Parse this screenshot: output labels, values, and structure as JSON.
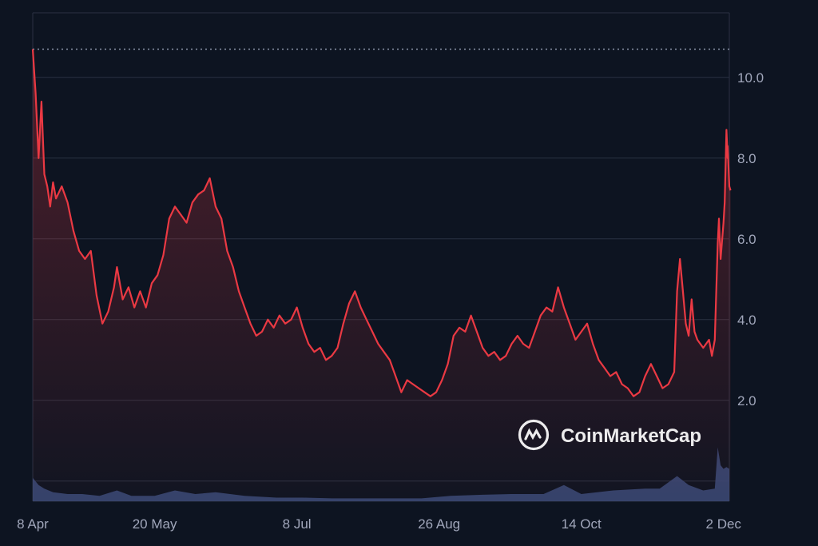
{
  "watermark": {
    "text": "CoinMarketCap",
    "icon": "coinmarketcap-logo-icon"
  },
  "colors": {
    "background": "#0d1421",
    "grid": "#2a3142",
    "price_line": "#ea3943",
    "volume": "#3a4a78",
    "tick_label": "#a1a7bb"
  },
  "chart_data": {
    "type": "area",
    "title": "",
    "xlabel": "",
    "ylabel": "",
    "grid": true,
    "y_axis_side": "right",
    "ylim": [
      -0.5,
      11.6
    ],
    "y_ticks": [
      {
        "value": 2.0,
        "label": "2.0"
      },
      {
        "value": 4.0,
        "label": "4.0"
      },
      {
        "value": 6.0,
        "label": "6.0"
      },
      {
        "value": 8.0,
        "label": "8.0"
      },
      {
        "value": 10.0,
        "label": "10.0"
      }
    ],
    "x_range": [
      "2024-04-08",
      "2024-12-04"
    ],
    "x_ticks": [
      {
        "date": "2024-04-08",
        "label": "8 Apr"
      },
      {
        "date": "2024-05-20",
        "label": "20 May"
      },
      {
        "date": "2024-07-08",
        "label": "8 Jul"
      },
      {
        "date": "2024-08-26",
        "label": "26 Aug"
      },
      {
        "date": "2024-10-14",
        "label": "14 Oct"
      },
      {
        "date": "2024-12-02",
        "label": "2 Dec"
      }
    ],
    "reference_line": {
      "value": 10.7,
      "style": "dotted"
    },
    "series": [
      {
        "kind": "price",
        "points": [
          [
            "2024-04-08",
            10.7
          ],
          [
            "2024-04-09",
            9.6
          ],
          [
            "2024-04-10",
            8.0
          ],
          [
            "2024-04-11",
            9.4
          ],
          [
            "2024-04-12",
            7.6
          ],
          [
            "2024-04-13",
            7.3
          ],
          [
            "2024-04-14",
            6.8
          ],
          [
            "2024-04-15",
            7.4
          ],
          [
            "2024-04-16",
            7.0
          ],
          [
            "2024-04-18",
            7.3
          ],
          [
            "2024-04-20",
            6.9
          ],
          [
            "2024-04-22",
            6.2
          ],
          [
            "2024-04-24",
            5.7
          ],
          [
            "2024-04-26",
            5.5
          ],
          [
            "2024-04-28",
            5.7
          ],
          [
            "2024-04-30",
            4.6
          ],
          [
            "2024-05-02",
            3.9
          ],
          [
            "2024-05-04",
            4.2
          ],
          [
            "2024-05-06",
            4.8
          ],
          [
            "2024-05-07",
            5.3
          ],
          [
            "2024-05-09",
            4.5
          ],
          [
            "2024-05-11",
            4.8
          ],
          [
            "2024-05-13",
            4.3
          ],
          [
            "2024-05-15",
            4.7
          ],
          [
            "2024-05-17",
            4.3
          ],
          [
            "2024-05-19",
            4.9
          ],
          [
            "2024-05-21",
            5.1
          ],
          [
            "2024-05-23",
            5.6
          ],
          [
            "2024-05-25",
            6.5
          ],
          [
            "2024-05-27",
            6.8
          ],
          [
            "2024-05-29",
            6.6
          ],
          [
            "2024-05-31",
            6.4
          ],
          [
            "2024-06-02",
            6.9
          ],
          [
            "2024-06-04",
            7.1
          ],
          [
            "2024-06-06",
            7.2
          ],
          [
            "2024-06-08",
            7.5
          ],
          [
            "2024-06-10",
            6.8
          ],
          [
            "2024-06-12",
            6.5
          ],
          [
            "2024-06-14",
            5.7
          ],
          [
            "2024-06-16",
            5.3
          ],
          [
            "2024-06-18",
            4.7
          ],
          [
            "2024-06-20",
            4.3
          ],
          [
            "2024-06-22",
            3.9
          ],
          [
            "2024-06-24",
            3.6
          ],
          [
            "2024-06-26",
            3.7
          ],
          [
            "2024-06-28",
            4.0
          ],
          [
            "2024-06-30",
            3.8
          ],
          [
            "2024-07-02",
            4.1
          ],
          [
            "2024-07-04",
            3.9
          ],
          [
            "2024-07-06",
            4.0
          ],
          [
            "2024-07-08",
            4.3
          ],
          [
            "2024-07-10",
            3.8
          ],
          [
            "2024-07-12",
            3.4
          ],
          [
            "2024-07-14",
            3.2
          ],
          [
            "2024-07-16",
            3.3
          ],
          [
            "2024-07-18",
            3.0
          ],
          [
            "2024-07-20",
            3.1
          ],
          [
            "2024-07-22",
            3.3
          ],
          [
            "2024-07-24",
            3.9
          ],
          [
            "2024-07-26",
            4.4
          ],
          [
            "2024-07-28",
            4.7
          ],
          [
            "2024-07-30",
            4.3
          ],
          [
            "2024-08-01",
            4.0
          ],
          [
            "2024-08-03",
            3.7
          ],
          [
            "2024-08-05",
            3.4
          ],
          [
            "2024-08-07",
            3.2
          ],
          [
            "2024-08-09",
            3.0
          ],
          [
            "2024-08-11",
            2.6
          ],
          [
            "2024-08-13",
            2.2
          ],
          [
            "2024-08-15",
            2.5
          ],
          [
            "2024-08-17",
            2.4
          ],
          [
            "2024-08-19",
            2.3
          ],
          [
            "2024-08-21",
            2.2
          ],
          [
            "2024-08-23",
            2.1
          ],
          [
            "2024-08-25",
            2.2
          ],
          [
            "2024-08-27",
            2.5
          ],
          [
            "2024-08-29",
            2.9
          ],
          [
            "2024-08-31",
            3.6
          ],
          [
            "2024-09-02",
            3.8
          ],
          [
            "2024-09-04",
            3.7
          ],
          [
            "2024-09-06",
            4.1
          ],
          [
            "2024-09-08",
            3.7
          ],
          [
            "2024-09-10",
            3.3
          ],
          [
            "2024-09-12",
            3.1
          ],
          [
            "2024-09-14",
            3.2
          ],
          [
            "2024-09-16",
            3.0
          ],
          [
            "2024-09-18",
            3.1
          ],
          [
            "2024-09-20",
            3.4
          ],
          [
            "2024-09-22",
            3.6
          ],
          [
            "2024-09-24",
            3.4
          ],
          [
            "2024-09-26",
            3.3
          ],
          [
            "2024-09-28",
            3.7
          ],
          [
            "2024-09-30",
            4.1
          ],
          [
            "2024-10-02",
            4.3
          ],
          [
            "2024-10-04",
            4.2
          ],
          [
            "2024-10-06",
            4.8
          ],
          [
            "2024-10-08",
            4.3
          ],
          [
            "2024-10-10",
            3.9
          ],
          [
            "2024-10-12",
            3.5
          ],
          [
            "2024-10-14",
            3.7
          ],
          [
            "2024-10-16",
            3.9
          ],
          [
            "2024-10-18",
            3.4
          ],
          [
            "2024-10-20",
            3.0
          ],
          [
            "2024-10-22",
            2.8
          ],
          [
            "2024-10-24",
            2.6
          ],
          [
            "2024-10-26",
            2.7
          ],
          [
            "2024-10-28",
            2.4
          ],
          [
            "2024-10-30",
            2.3
          ],
          [
            "2024-11-01",
            2.1
          ],
          [
            "2024-11-03",
            2.2
          ],
          [
            "2024-11-05",
            2.6
          ],
          [
            "2024-11-07",
            2.9
          ],
          [
            "2024-11-09",
            2.6
          ],
          [
            "2024-11-11",
            2.3
          ],
          [
            "2024-11-13",
            2.4
          ],
          [
            "2024-11-15",
            2.7
          ],
          [
            "2024-11-16",
            4.7
          ],
          [
            "2024-11-17",
            5.5
          ],
          [
            "2024-11-18",
            4.7
          ],
          [
            "2024-11-19",
            3.9
          ],
          [
            "2024-11-20",
            3.6
          ],
          [
            "2024-11-21",
            4.5
          ],
          [
            "2024-11-22",
            3.7
          ],
          [
            "2024-11-23",
            3.5
          ],
          [
            "2024-11-25",
            3.3
          ],
          [
            "2024-11-27",
            3.5
          ],
          [
            "2024-11-28",
            3.1
          ],
          [
            "2024-11-29",
            3.5
          ],
          [
            "2024-11-30",
            5.9
          ],
          [
            "2024-11-30",
            6.5
          ],
          [
            "2024-12-01",
            5.5
          ],
          [
            "2024-12-02",
            6.4
          ],
          [
            "2024-12-02",
            6.9
          ],
          [
            "2024-12-03",
            8.7
          ],
          [
            "2024-12-03",
            8.0
          ],
          [
            "2024-12-03",
            8.3
          ],
          [
            "2024-12-04",
            7.3
          ],
          [
            "2024-12-04",
            7.2
          ]
        ]
      },
      {
        "kind": "volume",
        "points": [
          [
            "2024-04-08",
            0.65
          ],
          [
            "2024-04-10",
            0.45
          ],
          [
            "2024-04-12",
            0.35
          ],
          [
            "2024-04-15",
            0.25
          ],
          [
            "2024-04-20",
            0.2
          ],
          [
            "2024-04-25",
            0.2
          ],
          [
            "2024-05-01",
            0.15
          ],
          [
            "2024-05-07",
            0.3
          ],
          [
            "2024-05-12",
            0.15
          ],
          [
            "2024-05-20",
            0.15
          ],
          [
            "2024-05-27",
            0.3
          ],
          [
            "2024-06-03",
            0.2
          ],
          [
            "2024-06-10",
            0.25
          ],
          [
            "2024-06-20",
            0.15
          ],
          [
            "2024-07-01",
            0.1
          ],
          [
            "2024-07-10",
            0.1
          ],
          [
            "2024-07-20",
            0.08
          ],
          [
            "2024-08-01",
            0.08
          ],
          [
            "2024-08-10",
            0.08
          ],
          [
            "2024-08-20",
            0.08
          ],
          [
            "2024-08-30",
            0.15
          ],
          [
            "2024-09-10",
            0.18
          ],
          [
            "2024-09-20",
            0.2
          ],
          [
            "2024-10-01",
            0.2
          ],
          [
            "2024-10-08",
            0.45
          ],
          [
            "2024-10-14",
            0.2
          ],
          [
            "2024-10-25",
            0.3
          ],
          [
            "2024-11-05",
            0.35
          ],
          [
            "2024-11-10",
            0.35
          ],
          [
            "2024-11-16",
            0.7
          ],
          [
            "2024-11-20",
            0.45
          ],
          [
            "2024-11-25",
            0.3
          ],
          [
            "2024-11-29",
            0.35
          ],
          [
            "2024-11-30",
            1.5
          ],
          [
            "2024-12-01",
            1.0
          ],
          [
            "2024-12-02",
            0.9
          ],
          [
            "2024-12-03",
            0.95
          ],
          [
            "2024-12-04",
            0.9
          ]
        ]
      }
    ]
  }
}
